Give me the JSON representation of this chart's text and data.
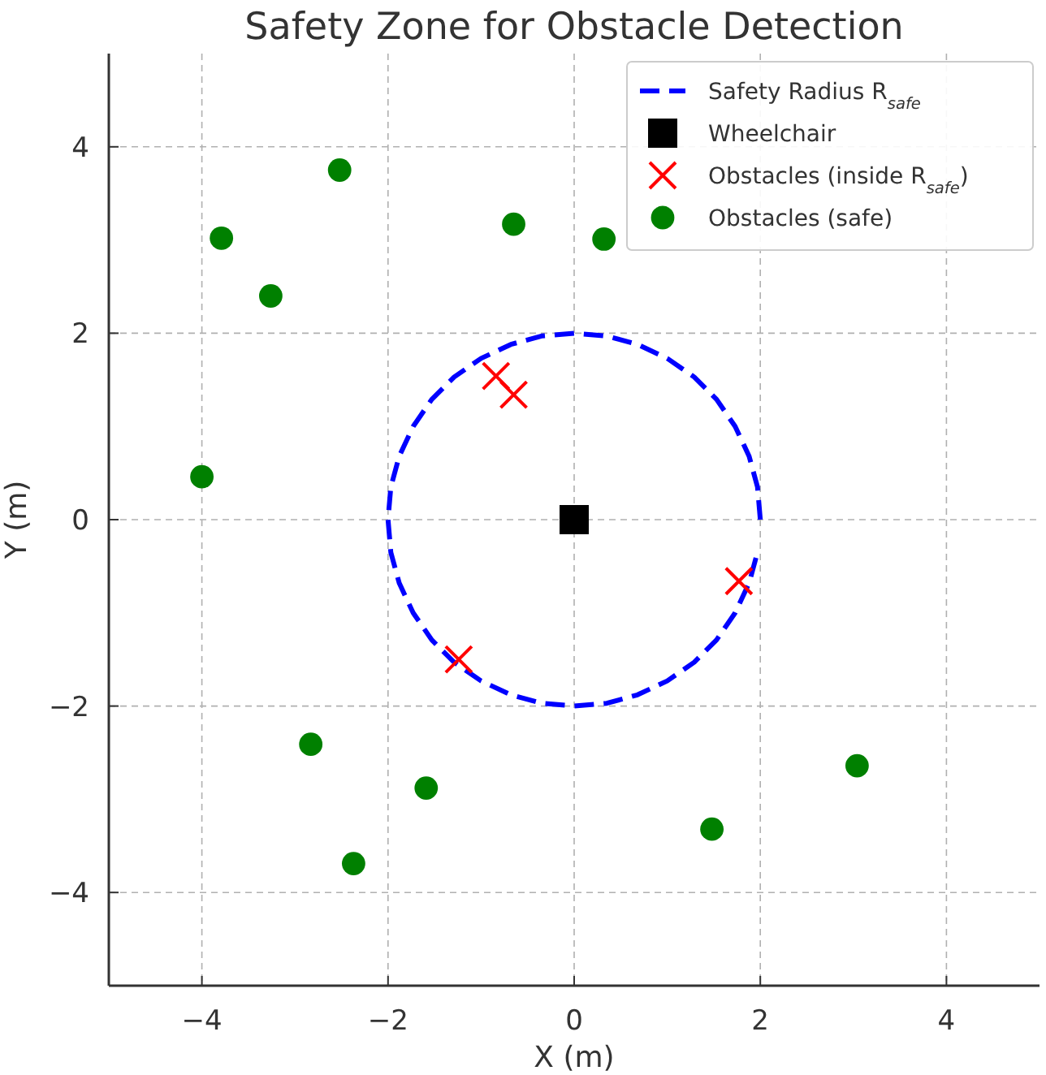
{
  "chart_data": {
    "type": "scatter",
    "title": "Safety Zone for Obstacle Detection",
    "xlabel": "X (m)",
    "ylabel": "Y (m)",
    "xlim": [
      -5,
      5
    ],
    "ylim": [
      -5,
      5
    ],
    "xticks": [
      -4,
      -2,
      0,
      2,
      4
    ],
    "yticks": [
      -4,
      -2,
      0,
      2,
      4
    ],
    "grid": true,
    "legend": "top right",
    "series": [
      {
        "name": "Safety Radius R$_{safe}$",
        "type": "line",
        "color": "#0000ff",
        "line_style": "dashed",
        "marker": "none",
        "x": [
          2,
          1.97,
          1.88,
          1.73,
          1.53,
          1.29,
          1,
          0.68,
          0.35,
          0,
          -0.35,
          -0.68,
          -1,
          -1.29,
          -1.53,
          -1.73,
          -1.88,
          -1.97,
          -2,
          -1.97,
          -1.88,
          -1.73,
          -1.53,
          -1.29,
          -1,
          -0.68,
          -0.35,
          0,
          0.35,
          0.68,
          1,
          1.29,
          1.53,
          1.73,
          1.88,
          1.97
        ],
        "values": [
          0,
          0.35,
          0.68,
          1,
          1.29,
          1.53,
          1.73,
          1.88,
          1.97,
          2,
          1.97,
          1.88,
          1.73,
          1.53,
          1.29,
          1,
          0.68,
          0.35,
          0,
          -0.35,
          -0.68,
          -1,
          -1.29,
          -1.53,
          -1.73,
          -1.88,
          -1.97,
          -2,
          -1.97,
          -1.88,
          -1.73,
          -1.53,
          -1.29,
          -1,
          -0.68,
          -0.35
        ]
      },
      {
        "name": "Wheelchair",
        "color": "#000000",
        "marker": "square",
        "x": [
          0
        ],
        "values": [
          0
        ]
      },
      {
        "name": "Obstacles (inside R$_{safe}$)",
        "color": "#ff0000",
        "marker": "cross",
        "x": [
          -0.84,
          -0.65,
          -1.24,
          1.77
        ],
        "values": [
          1.54,
          1.34,
          -1.5,
          -0.66
        ]
      },
      {
        "name": "Obstacles (safe)",
        "color": "#008000",
        "marker": "circle",
        "x": [
          -2.52,
          -3.79,
          -3.26,
          -0.65,
          0.32,
          -4.0,
          -2.83,
          -1.59,
          -2.37,
          1.48,
          3.04
        ],
        "values": [
          3.75,
          3.02,
          2.4,
          3.17,
          3.01,
          0.46,
          -2.41,
          -2.88,
          -3.69,
          -3.32,
          -2.64
        ]
      }
    ]
  }
}
